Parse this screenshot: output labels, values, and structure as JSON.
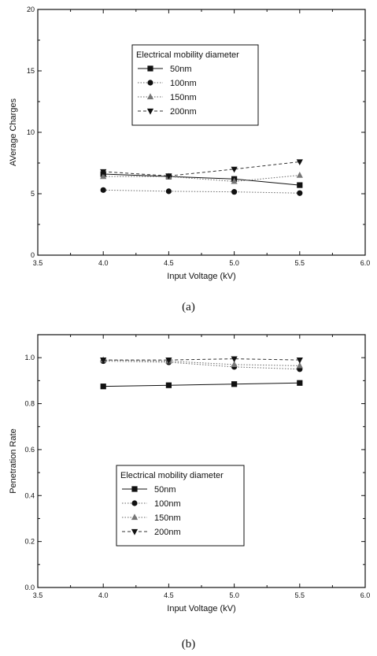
{
  "chart_data": [
    {
      "type": "line",
      "panel_label": "(a)",
      "xlabel": "Input Voltage (kV)",
      "ylabel": "AVerage Charges",
      "xlim": [
        3.5,
        6.0
      ],
      "ylim": [
        0,
        20
      ],
      "xticks": [
        3.5,
        4.0,
        4.5,
        5.0,
        5.5,
        6.0
      ],
      "yticks": [
        0,
        5,
        10,
        15,
        20
      ],
      "tick_decimals_x": 1,
      "tick_decimals_y": 0,
      "grid": false,
      "legend": {
        "title": "Electrical mobility diameter",
        "placement": "top-center"
      },
      "x": [
        4.0,
        4.5,
        5.0,
        5.5
      ],
      "series": [
        {
          "name": "50nm",
          "marker": "square",
          "line": "solid",
          "values": [
            6.6,
            6.4,
            6.2,
            5.7
          ]
        },
        {
          "name": "100nm",
          "marker": "circle",
          "line": "dotted",
          "values": [
            5.3,
            5.2,
            5.15,
            5.05
          ]
        },
        {
          "name": "150nm",
          "marker": "triangle-up",
          "line": "dotted",
          "values": [
            6.4,
            6.4,
            6.0,
            6.5
          ]
        },
        {
          "name": "200nm",
          "marker": "triangle-down",
          "line": "dashed",
          "values": [
            6.8,
            6.45,
            7.0,
            7.6
          ]
        }
      ]
    },
    {
      "type": "line",
      "panel_label": "(b)",
      "xlabel": "Input Voltage (kV)",
      "ylabel": "Penetration Rate",
      "xlim": [
        3.5,
        6.0
      ],
      "ylim": [
        0,
        1.1
      ],
      "xticks": [
        3.5,
        4.0,
        4.5,
        5.0,
        5.5,
        6.0
      ],
      "yticks": [
        0.0,
        0.2,
        0.4,
        0.6,
        0.8,
        1.0
      ],
      "tick_decimals_x": 1,
      "tick_decimals_y": 1,
      "grid": false,
      "legend": {
        "title": "Electrical mobility diameter",
        "placement": "center-left"
      },
      "x": [
        4.0,
        4.5,
        5.0,
        5.5
      ],
      "series": [
        {
          "name": "50nm",
          "marker": "square",
          "line": "solid",
          "values": [
            0.875,
            0.88,
            0.885,
            0.89
          ]
        },
        {
          "name": "100nm",
          "marker": "circle",
          "line": "dotted",
          "values": [
            0.985,
            0.98,
            0.96,
            0.95
          ]
        },
        {
          "name": "150nm",
          "marker": "triangle-up",
          "line": "dotted",
          "values": [
            0.99,
            0.985,
            0.97,
            0.965
          ]
        },
        {
          "name": "200nm",
          "marker": "triangle-down",
          "line": "dashed",
          "values": [
            0.99,
            0.99,
            0.995,
            0.99
          ]
        }
      ]
    }
  ]
}
